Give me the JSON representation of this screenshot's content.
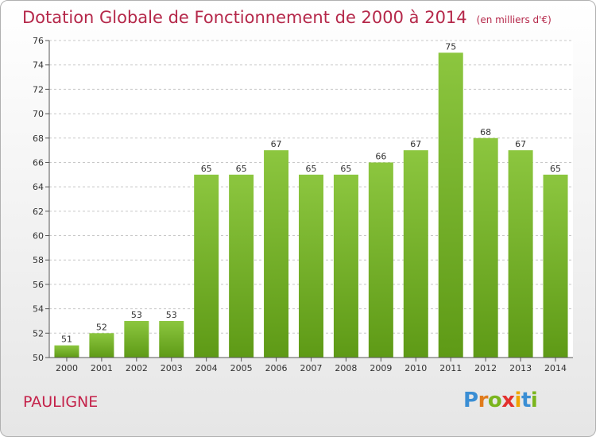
{
  "header": {
    "title": "Dotation Globale de Fonctionnement de 2000 à 2014",
    "unit": "(en milliers d'€)"
  },
  "footer": {
    "commune": "PAULIGNE",
    "logo_letters": [
      {
        "ch": "P",
        "color": "#3a8ed4"
      },
      {
        "ch": "r",
        "color": "#e07b1c"
      },
      {
        "ch": "o",
        "color": "#7ab51d"
      },
      {
        "ch": "x",
        "color": "#e3312e"
      },
      {
        "ch": "i",
        "color": "#f0a500"
      },
      {
        "ch": "t",
        "color": "#3a8ed4"
      },
      {
        "ch": "i",
        "color": "#7ab51d"
      }
    ]
  },
  "chart_data": {
    "type": "bar",
    "categories": [
      "2000",
      "2001",
      "2002",
      "2003",
      "2004",
      "2005",
      "2006",
      "2007",
      "2008",
      "2009",
      "2010",
      "2011",
      "2012",
      "2013",
      "2014"
    ],
    "values": [
      51,
      52,
      53,
      53,
      65,
      65,
      67,
      65,
      65,
      66,
      67,
      75,
      68,
      67,
      65
    ],
    "title": "Dotation Globale de Fonctionnement de 2000 à 2014",
    "ylim": [
      50,
      76
    ],
    "yticks": [
      50,
      52,
      54,
      56,
      58,
      60,
      62,
      64,
      66,
      68,
      70,
      72,
      74,
      76
    ],
    "grid": true,
    "bar_color": "#8cc63f",
    "bar_color_dark": "#5e9a16"
  }
}
